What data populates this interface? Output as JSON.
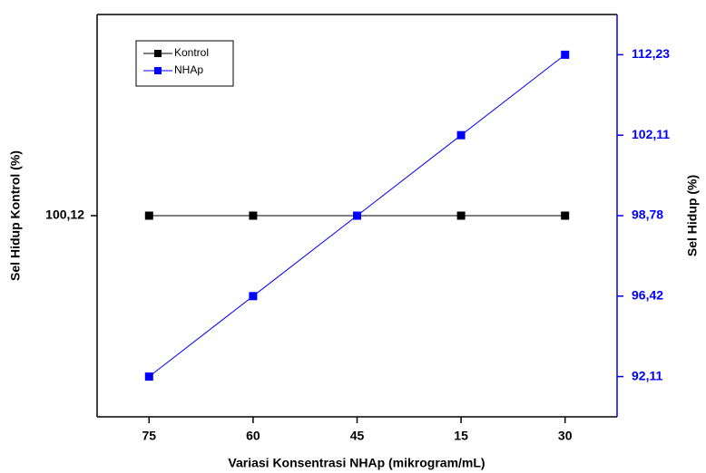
{
  "chart_data": {
    "type": "line",
    "x_label": "Variasi Konsentrasi NHAp (mikrogram/mL)",
    "y_label": "Sel Hidup Kontrol (%)",
    "y2_label": "Sel Hidup (%)",
    "categories": [
      "75",
      "60",
      "45",
      "15",
      "30"
    ],
    "series": [
      {
        "name": "Kontrol",
        "color": "#000000",
        "values": [
          100.12,
          100.12,
          100.12,
          100.12,
          100.12
        ]
      },
      {
        "name": "NHAp",
        "color": "#0000ff",
        "axis": "y2",
        "values": [
          92.11,
          96.42,
          98.78,
          102.11,
          112.23
        ]
      }
    ],
    "ylim": [
      99.12,
      101.12
    ],
    "yticks": [
      {
        "value": 100.12,
        "label": "100,12"
      }
    ],
    "y2lim": [
      89.96,
      117.29
    ],
    "y2ticks": [
      {
        "value": 92.11,
        "label": "92,11"
      },
      {
        "value": 96.42,
        "label": "96,42"
      },
      {
        "value": 98.78,
        "label": "98,78"
      },
      {
        "value": 102.11,
        "label": "102,11"
      },
      {
        "value": 112.23,
        "label": "112,23"
      }
    ],
    "y2_color": "#0000ff",
    "legend": "upper left"
  }
}
